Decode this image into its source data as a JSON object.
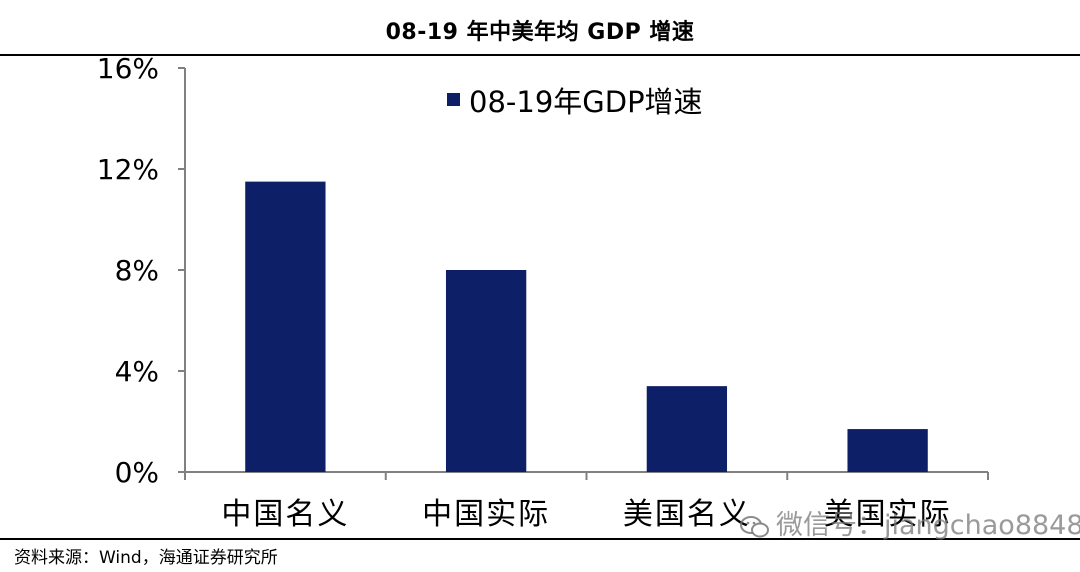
{
  "header": {
    "title": "08-19 年中美年均 GDP 增速"
  },
  "footer": {
    "source": "资料来源：Wind，海通证券研究所"
  },
  "watermark": {
    "text": "微信号：jiangchao8848",
    "icon": "wechat-icon"
  },
  "colors": {
    "bar": "#0d1f66",
    "axis": "#808080",
    "rule": "#000000"
  },
  "chart_data": {
    "type": "bar",
    "title": "08-19 年中美年均 GDP 增速",
    "categories": [
      "中国名义",
      "中国实际",
      "美国名义",
      "美国实际"
    ],
    "series": [
      {
        "name": "08-19年GDP增速",
        "values": [
          11.5,
          8.0,
          3.4,
          1.7
        ]
      }
    ],
    "y_ticks": [
      "0%",
      "4%",
      "8%",
      "12%",
      "16%"
    ],
    "ylim": [
      0,
      16
    ],
    "grid": false,
    "legend_position": "top-center"
  }
}
